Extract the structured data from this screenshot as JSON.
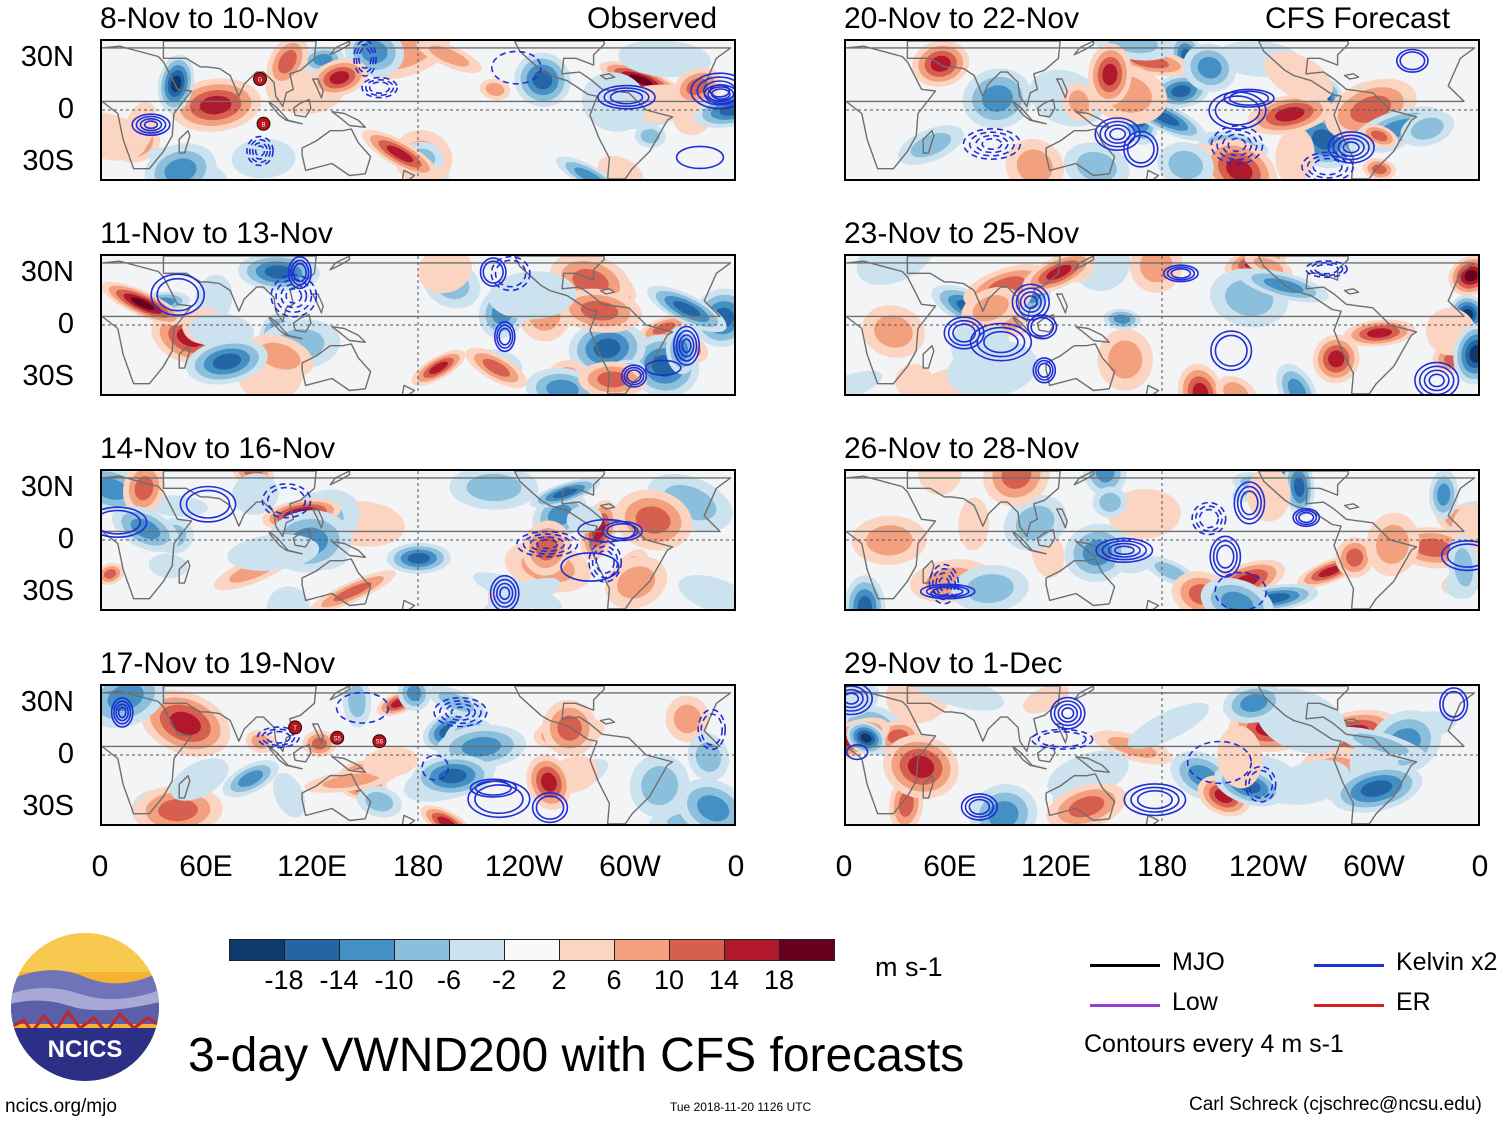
{
  "panels": [
    {
      "title": "8-Nov to 10-Nov",
      "source": "Observed",
      "seed": 1,
      "tc": [
        {
          "label": "G",
          "lon": 90,
          "lat": 18
        },
        {
          "label": "B",
          "lon": 92,
          "lat": -8
        }
      ]
    },
    {
      "title": "11-Nov to 13-Nov",
      "source": "",
      "seed": 2,
      "tc": []
    },
    {
      "title": "14-Nov to 16-Nov",
      "source": "",
      "seed": 3,
      "tc": []
    },
    {
      "title": "17-Nov to 19-Nov",
      "source": "",
      "seed": 4,
      "tc": [
        {
          "label": "T",
          "lon": 110,
          "lat": 16
        },
        {
          "label": "S5",
          "lon": 134,
          "lat": 10
        },
        {
          "label": "S6",
          "lon": 158,
          "lat": 8
        }
      ]
    },
    {
      "title": "20-Nov to 22-Nov",
      "source": "CFS Forecast",
      "seed": 5,
      "tc": []
    },
    {
      "title": "23-Nov to 25-Nov",
      "source": "",
      "seed": 6,
      "tc": []
    },
    {
      "title": "26-Nov to 28-Nov",
      "source": "",
      "seed": 7,
      "tc": []
    },
    {
      "title": "29-Nov to 1-Dec",
      "source": "",
      "seed": 8,
      "tc": []
    }
  ],
  "lat_labels": [
    "30N",
    "0",
    "30S"
  ],
  "lon_labels": [
    "0",
    "60E",
    "120E",
    "180",
    "120W",
    "60W",
    "0"
  ],
  "colorbar": {
    "colors": [
      "#0d3a6b",
      "#2465a6",
      "#4490c4",
      "#8cbfdc",
      "#cde2ef",
      "#f9f9f9",
      "#fbd5c2",
      "#f2a07e",
      "#d65f4f",
      "#b2182b",
      "#67001f"
    ],
    "ticks": [
      "-18",
      "-14",
      "-10",
      "-6",
      "-2",
      "2",
      "6",
      "10",
      "14",
      "18"
    ],
    "units": "m s-1"
  },
  "legend": {
    "items": [
      {
        "label": "MJO",
        "color": "#000000"
      },
      {
        "label": "Kelvin x2",
        "color": "#1f2fd6"
      },
      {
        "label": "Low",
        "color": "#9b3bd6"
      },
      {
        "label": "ER",
        "color": "#d61f1f"
      }
    ],
    "note": "Contours every 4 m s-1"
  },
  "title": "3-day VWND200 with CFS forecasts",
  "logo_text": "NCICS",
  "footer": {
    "left": "ncics.org/mjo",
    "center": "Tue 2018-11-20 1126 UTC",
    "right": "Carl Schreck (cjschrec@ncsu.edu)"
  }
}
